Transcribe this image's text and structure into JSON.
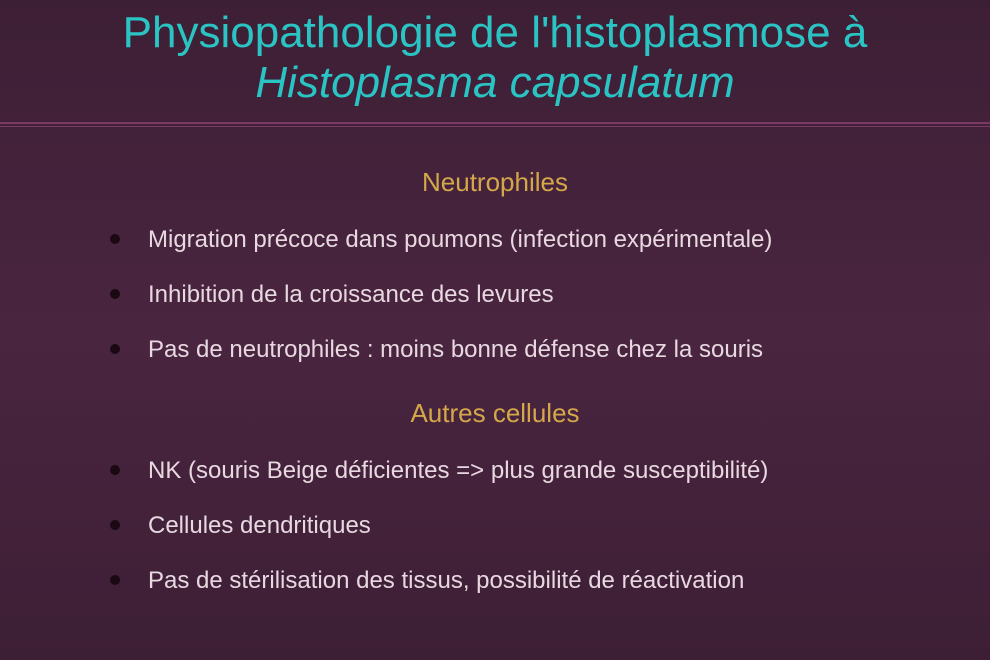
{
  "colors": {
    "background_top": "#3d1f35",
    "background_mid": "#4a2540",
    "title": "#2bc4c4",
    "heading": "#d4a84a",
    "body_text": "#e8d8e0",
    "divider": "#7a3a65",
    "bullet": "#1a0812"
  },
  "typography": {
    "title_fontsize": 44,
    "heading_fontsize": 26,
    "body_fontsize": 24,
    "font_family": "Arial"
  },
  "title": {
    "line1": "Physiopathologie de l'histoplasmose à",
    "line2": "Histoplasma capsulatum"
  },
  "sections": [
    {
      "heading": "Neutrophiles",
      "bullets": [
        "Migration précoce dans poumons (infection expérimentale)",
        "Inhibition de la croissance des levures",
        "Pas de neutrophiles : moins bonne défense chez la souris"
      ]
    },
    {
      "heading": "Autres cellules",
      "bullets": [
        "NK (souris Beige déficientes => plus grande susceptibilité)",
        "Cellules dendritiques",
        "Pas de stérilisation des tissus, possibilité de réactivation"
      ]
    }
  ]
}
